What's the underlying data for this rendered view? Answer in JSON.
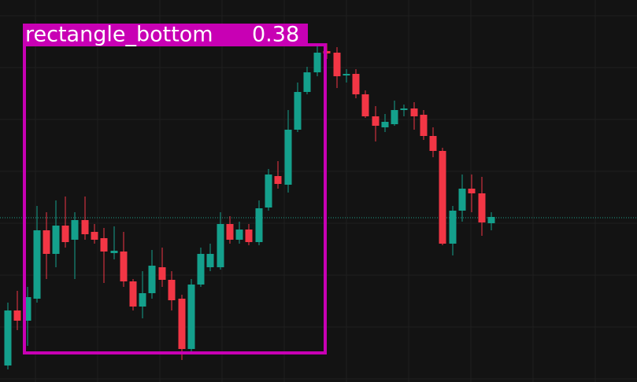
{
  "detection": {
    "label": "rectangle_bottom",
    "score": 0.38
  }
}
